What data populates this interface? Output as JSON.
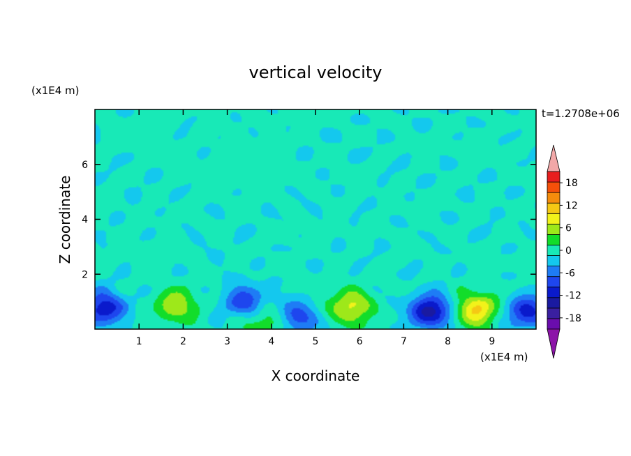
{
  "chart_data": {
    "type": "heatmap",
    "title": "vertical velocity",
    "xlabel": "X coordinate",
    "ylabel": "Z coordinate",
    "x_unit": "(x1E4 m)",
    "y_unit": "(x1E4 m)",
    "time_label": "t=1.2708e+06",
    "xlim": [
      0,
      10
    ],
    "ylim": [
      0,
      8
    ],
    "x_ticks": [
      1,
      2,
      3,
      4,
      5,
      6,
      7,
      8,
      9
    ],
    "y_ticks": [
      2,
      4,
      6
    ],
    "colorbar": {
      "levels": [
        -21,
        -18,
        -15,
        -12,
        -9,
        -6,
        -3,
        0,
        3,
        6,
        9,
        12,
        15,
        18,
        21
      ],
      "tick_labels": [
        18,
        12,
        6,
        0,
        -6,
        -12,
        -18
      ],
      "colors": [
        "#6a0dad",
        "#3a1fa0",
        "#1a1aa0",
        "#0a1acc",
        "#1e46ee",
        "#1e7cf5",
        "#14c8ee",
        "#18e9b7",
        "#12dd2a",
        "#9ee81a",
        "#f2f21a",
        "#f5c814",
        "#f58c0c",
        "#f5500a",
        "#e81e1e"
      ],
      "under_color": "#8c14a8",
      "over_color": "#f2a8a8"
    },
    "features": [
      {
        "kind": "updraft",
        "x": 1.85,
        "z": 0.85,
        "peak": 8
      },
      {
        "kind": "updraft",
        "x": 5.8,
        "z": 0.8,
        "peak": 10
      },
      {
        "kind": "updraft",
        "x": 8.65,
        "z": 0.7,
        "peak": 12
      },
      {
        "kind": "updraft",
        "x": 3.8,
        "z": 0.2,
        "peak": 6
      },
      {
        "kind": "downdraft",
        "x": 0.2,
        "z": 0.75,
        "peak": -12
      },
      {
        "kind": "downdraft",
        "x": 3.4,
        "z": 1.0,
        "peak": -9
      },
      {
        "kind": "downdraft",
        "x": 4.6,
        "z": 0.4,
        "peak": -8
      },
      {
        "kind": "downdraft",
        "x": 7.6,
        "z": 0.65,
        "peak": -14
      },
      {
        "kind": "downdraft",
        "x": 9.8,
        "z": 0.6,
        "peak": -11
      }
    ]
  }
}
